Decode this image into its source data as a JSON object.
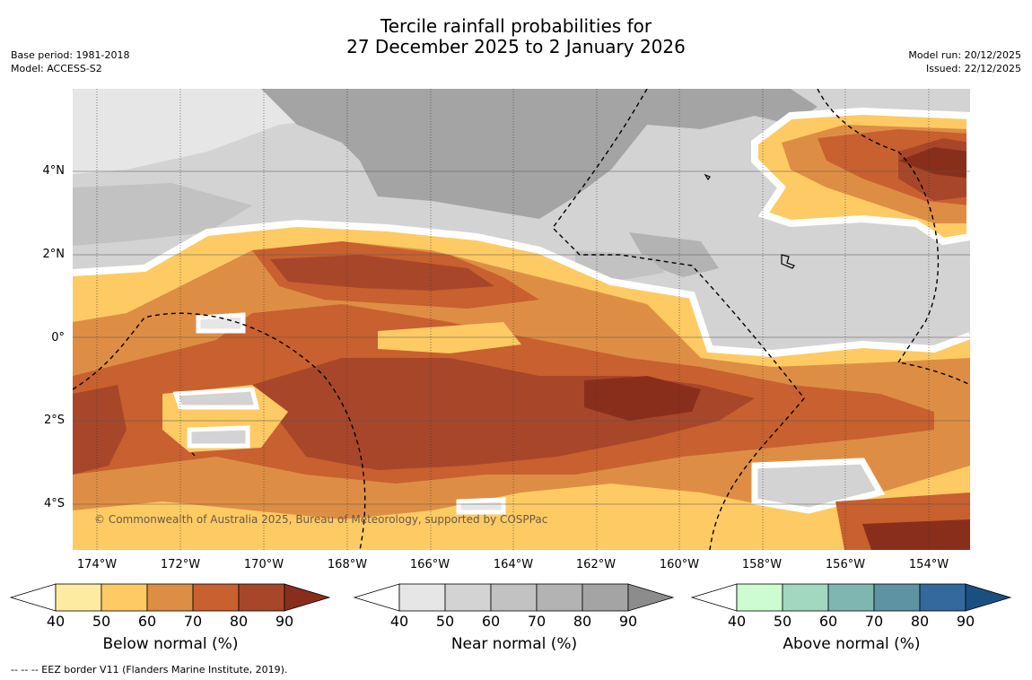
{
  "title": {
    "line1": "Tercile rainfall probabilities for",
    "line2": "27 December 2025 to 2 January 2026"
  },
  "meta_left": {
    "base_period": "Base period: 1981-2018",
    "model": "Model: ACCESS-S2"
  },
  "meta_right": {
    "model_run": "Model run: 20/12/2025",
    "issued": "Issued: 22/12/2025"
  },
  "map": {
    "longitude_labels": [
      "174°W",
      "172°W",
      "170°W",
      "168°W",
      "166°W",
      "164°W",
      "162°W",
      "160°W",
      "158°W",
      "156°W",
      "154°W"
    ],
    "latitude_labels": [
      "4°N",
      "2°N",
      "0°",
      "2°S",
      "4°S"
    ],
    "copyright": "© Commonwealth of Australia 2025, Bureau of Meteorology, supported by COSPPac"
  },
  "colorbars": [
    {
      "name": "below",
      "label": "Below normal (%)",
      "ticks": [
        "40",
        "50",
        "60",
        "70",
        "80",
        "90"
      ],
      "colors": [
        "#fdeca0",
        "#fdca64",
        "#de8e44",
        "#c8602f",
        "#a8462a",
        "#8a2e1c"
      ]
    },
    {
      "name": "near",
      "label": "Near normal (%)",
      "ticks": [
        "40",
        "50",
        "60",
        "70",
        "80",
        "90"
      ],
      "colors": [
        "#e6e6e6",
        "#d3d3d3",
        "#c2c2c2",
        "#b3b3b3",
        "#a4a4a4",
        "#8c8c8c"
      ]
    },
    {
      "name": "above",
      "label": "Above normal (%)",
      "ticks": [
        "40",
        "50",
        "60",
        "70",
        "80",
        "90"
      ],
      "colors": [
        "#ccfcd0",
        "#a2d8c0",
        "#7fb6b2",
        "#5d93a2",
        "#33699c",
        "#1a4f82"
      ]
    }
  ],
  "footer": {
    "legend_note": "--  --  -- EEZ border V11 (Flanders Marine Institute, 2019)."
  }
}
